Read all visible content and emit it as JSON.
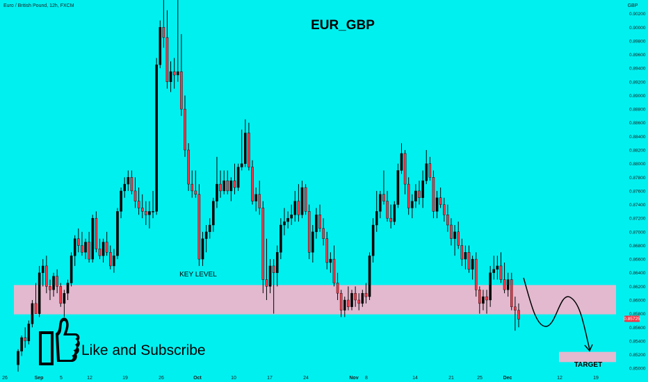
{
  "header": {
    "symbol_info": "Euro / British Pound, 12h, FXCM",
    "currency": "GBP",
    "title": "EUR_GBP"
  },
  "annotations": {
    "key_level_label": "KEY LEVEL",
    "target_label": "TARGET",
    "cta_text": "Like and Subscribe",
    "cta_icon": "thumbs-up-icon"
  },
  "price_badge": {
    "value": "0.85725",
    "color": "#f23645"
  },
  "colors": {
    "background": "#00f0f0",
    "bull": "#000000",
    "bear": "#f23645",
    "zone": "#f5b4cc",
    "axis_text": "#1e1e1e"
  },
  "chart_data": {
    "type": "candlestick",
    "title": "EUR_GBP",
    "y_axis": {
      "side": "right",
      "unit": "GBP",
      "range": [
        0.849,
        0.904
      ],
      "ticks": [
        "0.90200",
        "0.90000",
        "0.89800",
        "0.89600",
        "0.89400",
        "0.89200",
        "0.89000",
        "0.88800",
        "0.88600",
        "0.88400",
        "0.88200",
        "0.88000",
        "0.87800",
        "0.87600",
        "0.87400",
        "0.87200",
        "0.87000",
        "0.86800",
        "0.86600",
        "0.86400",
        "0.86200",
        "0.86000",
        "0.85800",
        "0.85600",
        "0.85400",
        "0.85200",
        "0.85000"
      ]
    },
    "x_axis": {
      "ticks": [
        "26",
        "Sep",
        "5",
        "12",
        "19",
        "26",
        "Oct",
        "10",
        "17",
        "24",
        "Nov",
        "8",
        "14",
        "21",
        "25",
        "Dec",
        "12",
        "19"
      ],
      "bold_ticks": [
        "Sep",
        "Oct",
        "Nov",
        "Dec"
      ]
    },
    "key_level_zone": [
      0.8579,
      0.8622
    ],
    "target_zone": [
      0.8509,
      0.8524
    ],
    "last_price": 0.85725,
    "candles": [
      {
        "o": 0.8505,
        "h": 0.8528,
        "l": 0.8495,
        "c": 0.8525
      },
      {
        "o": 0.8525,
        "h": 0.8548,
        "l": 0.8518,
        "c": 0.8545
      },
      {
        "o": 0.8545,
        "h": 0.856,
        "l": 0.853,
        "c": 0.854
      },
      {
        "o": 0.854,
        "h": 0.857,
        "l": 0.8535,
        "c": 0.8565
      },
      {
        "o": 0.8565,
        "h": 0.86,
        "l": 0.856,
        "c": 0.8595
      },
      {
        "o": 0.8595,
        "h": 0.8625,
        "l": 0.858,
        "c": 0.858
      },
      {
        "o": 0.858,
        "h": 0.865,
        "l": 0.8575,
        "c": 0.864
      },
      {
        "o": 0.864,
        "h": 0.866,
        "l": 0.862,
        "c": 0.865
      },
      {
        "o": 0.865,
        "h": 0.8665,
        "l": 0.861,
        "c": 0.862
      },
      {
        "o": 0.862,
        "h": 0.863,
        "l": 0.86,
        "c": 0.8615
      },
      {
        "o": 0.8615,
        "h": 0.864,
        "l": 0.8605,
        "c": 0.8635
      },
      {
        "o": 0.8635,
        "h": 0.8645,
        "l": 0.861,
        "c": 0.862
      },
      {
        "o": 0.862,
        "h": 0.8625,
        "l": 0.859,
        "c": 0.8595
      },
      {
        "o": 0.8595,
        "h": 0.8615,
        "l": 0.8575,
        "c": 0.861
      },
      {
        "o": 0.861,
        "h": 0.863,
        "l": 0.86,
        "c": 0.8625
      },
      {
        "o": 0.8625,
        "h": 0.867,
        "l": 0.862,
        "c": 0.8665
      },
      {
        "o": 0.8665,
        "h": 0.8695,
        "l": 0.865,
        "c": 0.869
      },
      {
        "o": 0.869,
        "h": 0.8705,
        "l": 0.867,
        "c": 0.868
      },
      {
        "o": 0.868,
        "h": 0.87,
        "l": 0.8665,
        "c": 0.867
      },
      {
        "o": 0.867,
        "h": 0.869,
        "l": 0.866,
        "c": 0.8685
      },
      {
        "o": 0.8685,
        "h": 0.87,
        "l": 0.8655,
        "c": 0.866
      },
      {
        "o": 0.866,
        "h": 0.8725,
        "l": 0.8655,
        "c": 0.872
      },
      {
        "o": 0.872,
        "h": 0.873,
        "l": 0.867,
        "c": 0.8675
      },
      {
        "o": 0.8675,
        "h": 0.869,
        "l": 0.866,
        "c": 0.8665
      },
      {
        "o": 0.8665,
        "h": 0.869,
        "l": 0.8655,
        "c": 0.8685
      },
      {
        "o": 0.8685,
        "h": 0.87,
        "l": 0.8665,
        "c": 0.867
      },
      {
        "o": 0.867,
        "h": 0.868,
        "l": 0.8645,
        "c": 0.865
      },
      {
        "o": 0.865,
        "h": 0.8675,
        "l": 0.864,
        "c": 0.8665
      },
      {
        "o": 0.8665,
        "h": 0.8735,
        "l": 0.866,
        "c": 0.873
      },
      {
        "o": 0.873,
        "h": 0.8765,
        "l": 0.872,
        "c": 0.876
      },
      {
        "o": 0.876,
        "h": 0.878,
        "l": 0.875,
        "c": 0.877
      },
      {
        "o": 0.877,
        "h": 0.879,
        "l": 0.876,
        "c": 0.878
      },
      {
        "o": 0.878,
        "h": 0.879,
        "l": 0.8755,
        "c": 0.876
      },
      {
        "o": 0.876,
        "h": 0.878,
        "l": 0.8735,
        "c": 0.8745
      },
      {
        "o": 0.8745,
        "h": 0.8765,
        "l": 0.8725,
        "c": 0.8735
      },
      {
        "o": 0.8735,
        "h": 0.8755,
        "l": 0.872,
        "c": 0.873
      },
      {
        "o": 0.873,
        "h": 0.8745,
        "l": 0.871,
        "c": 0.8725
      },
      {
        "o": 0.8725,
        "h": 0.8745,
        "l": 0.8705,
        "c": 0.873
      },
      {
        "o": 0.873,
        "h": 0.876,
        "l": 0.872,
        "c": 0.873
      },
      {
        "o": 0.873,
        "h": 0.8955,
        "l": 0.8725,
        "c": 0.8945
      },
      {
        "o": 0.8945,
        "h": 0.901,
        "l": 0.894,
        "c": 0.9
      },
      {
        "o": 0.9,
        "h": 0.904,
        "l": 0.897,
        "c": 0.8985
      },
      {
        "o": 0.8985,
        "h": 0.9025,
        "l": 0.891,
        "c": 0.892
      },
      {
        "o": 0.892,
        "h": 0.895,
        "l": 0.8905,
        "c": 0.8935
      },
      {
        "o": 0.8935,
        "h": 0.8955,
        "l": 0.891,
        "c": 0.893
      },
      {
        "o": 0.893,
        "h": 0.904,
        "l": 0.892,
        "c": 0.8935
      },
      {
        "o": 0.8935,
        "h": 0.899,
        "l": 0.887,
        "c": 0.888
      },
      {
        "o": 0.888,
        "h": 0.89,
        "l": 0.881,
        "c": 0.882
      },
      {
        "o": 0.882,
        "h": 0.883,
        "l": 0.876,
        "c": 0.877
      },
      {
        "o": 0.877,
        "h": 0.879,
        "l": 0.875,
        "c": 0.876
      },
      {
        "o": 0.876,
        "h": 0.879,
        "l": 0.875,
        "c": 0.8755
      },
      {
        "o": 0.8755,
        "h": 0.877,
        "l": 0.865,
        "c": 0.866
      },
      {
        "o": 0.866,
        "h": 0.87,
        "l": 0.865,
        "c": 0.869
      },
      {
        "o": 0.869,
        "h": 0.871,
        "l": 0.867,
        "c": 0.87
      },
      {
        "o": 0.87,
        "h": 0.872,
        "l": 0.869,
        "c": 0.871
      },
      {
        "o": 0.871,
        "h": 0.875,
        "l": 0.87,
        "c": 0.8745
      },
      {
        "o": 0.8745,
        "h": 0.881,
        "l": 0.8735,
        "c": 0.877
      },
      {
        "o": 0.877,
        "h": 0.879,
        "l": 0.875,
        "c": 0.876
      },
      {
        "o": 0.876,
        "h": 0.879,
        "l": 0.8755,
        "c": 0.8775
      },
      {
        "o": 0.8775,
        "h": 0.879,
        "l": 0.8755,
        "c": 0.876
      },
      {
        "o": 0.876,
        "h": 0.878,
        "l": 0.8745,
        "c": 0.8775
      },
      {
        "o": 0.8775,
        "h": 0.88,
        "l": 0.8755,
        "c": 0.8765
      },
      {
        "o": 0.8765,
        "h": 0.88,
        "l": 0.876,
        "c": 0.8795
      },
      {
        "o": 0.8795,
        "h": 0.885,
        "l": 0.879,
        "c": 0.88
      },
      {
        "o": 0.88,
        "h": 0.8865,
        "l": 0.8795,
        "c": 0.8845
      },
      {
        "o": 0.8845,
        "h": 0.886,
        "l": 0.879,
        "c": 0.8795
      },
      {
        "o": 0.8795,
        "h": 0.8805,
        "l": 0.874,
        "c": 0.8745
      },
      {
        "o": 0.8745,
        "h": 0.8765,
        "l": 0.873,
        "c": 0.8755
      },
      {
        "o": 0.8755,
        "h": 0.8775,
        "l": 0.8725,
        "c": 0.8735
      },
      {
        "o": 0.8735,
        "h": 0.8745,
        "l": 0.861,
        "c": 0.863
      },
      {
        "o": 0.863,
        "h": 0.869,
        "l": 0.86,
        "c": 0.862
      },
      {
        "o": 0.862,
        "h": 0.866,
        "l": 0.861,
        "c": 0.865
      },
      {
        "o": 0.865,
        "h": 0.866,
        "l": 0.858,
        "c": 0.864
      },
      {
        "o": 0.864,
        "h": 0.868,
        "l": 0.862,
        "c": 0.867
      },
      {
        "o": 0.867,
        "h": 0.872,
        "l": 0.866,
        "c": 0.871
      },
      {
        "o": 0.871,
        "h": 0.8735,
        "l": 0.8695,
        "c": 0.8715
      },
      {
        "o": 0.8715,
        "h": 0.873,
        "l": 0.8705,
        "c": 0.872
      },
      {
        "o": 0.872,
        "h": 0.874,
        "l": 0.871,
        "c": 0.8725
      },
      {
        "o": 0.8725,
        "h": 0.876,
        "l": 0.8715,
        "c": 0.8745
      },
      {
        "o": 0.8745,
        "h": 0.877,
        "l": 0.8715,
        "c": 0.8725
      },
      {
        "o": 0.8725,
        "h": 0.8775,
        "l": 0.872,
        "c": 0.8765
      },
      {
        "o": 0.8765,
        "h": 0.877,
        "l": 0.8725,
        "c": 0.873
      },
      {
        "o": 0.873,
        "h": 0.874,
        "l": 0.866,
        "c": 0.867
      },
      {
        "o": 0.867,
        "h": 0.871,
        "l": 0.8655,
        "c": 0.87
      },
      {
        "o": 0.87,
        "h": 0.8735,
        "l": 0.869,
        "c": 0.8725
      },
      {
        "o": 0.8725,
        "h": 0.874,
        "l": 0.87,
        "c": 0.8705
      },
      {
        "o": 0.8705,
        "h": 0.872,
        "l": 0.868,
        "c": 0.869
      },
      {
        "o": 0.869,
        "h": 0.87,
        "l": 0.8645,
        "c": 0.8655
      },
      {
        "o": 0.8655,
        "h": 0.867,
        "l": 0.864,
        "c": 0.866
      },
      {
        "o": 0.866,
        "h": 0.868,
        "l": 0.862,
        "c": 0.8625
      },
      {
        "o": 0.8625,
        "h": 0.864,
        "l": 0.86,
        "c": 0.861
      },
      {
        "o": 0.861,
        "h": 0.8615,
        "l": 0.8575,
        "c": 0.8585
      },
      {
        "o": 0.8585,
        "h": 0.8605,
        "l": 0.8575,
        "c": 0.86
      },
      {
        "o": 0.86,
        "h": 0.862,
        "l": 0.8585,
        "c": 0.859
      },
      {
        "o": 0.859,
        "h": 0.8615,
        "l": 0.8585,
        "c": 0.861
      },
      {
        "o": 0.861,
        "h": 0.862,
        "l": 0.859,
        "c": 0.86
      },
      {
        "o": 0.86,
        "h": 0.861,
        "l": 0.8585,
        "c": 0.8595
      },
      {
        "o": 0.8595,
        "h": 0.8615,
        "l": 0.859,
        "c": 0.861
      },
      {
        "o": 0.861,
        "h": 0.8625,
        "l": 0.8595,
        "c": 0.8605
      },
      {
        "o": 0.8605,
        "h": 0.867,
        "l": 0.86,
        "c": 0.8665
      },
      {
        "o": 0.8665,
        "h": 0.872,
        "l": 0.8655,
        "c": 0.871
      },
      {
        "o": 0.871,
        "h": 0.876,
        "l": 0.87,
        "c": 0.873
      },
      {
        "o": 0.873,
        "h": 0.876,
        "l": 0.872,
        "c": 0.8755
      },
      {
        "o": 0.8755,
        "h": 0.879,
        "l": 0.874,
        "c": 0.8745
      },
      {
        "o": 0.8745,
        "h": 0.876,
        "l": 0.8715,
        "c": 0.872
      },
      {
        "o": 0.872,
        "h": 0.874,
        "l": 0.8705,
        "c": 0.8715
      },
      {
        "o": 0.8715,
        "h": 0.8745,
        "l": 0.871,
        "c": 0.874
      },
      {
        "o": 0.874,
        "h": 0.88,
        "l": 0.8735,
        "c": 0.879
      },
      {
        "o": 0.879,
        "h": 0.883,
        "l": 0.8785,
        "c": 0.8815
      },
      {
        "o": 0.8815,
        "h": 0.882,
        "l": 0.8755,
        "c": 0.877
      },
      {
        "o": 0.877,
        "h": 0.878,
        "l": 0.8725,
        "c": 0.8735
      },
      {
        "o": 0.8735,
        "h": 0.8755,
        "l": 0.872,
        "c": 0.8745
      },
      {
        "o": 0.8745,
        "h": 0.877,
        "l": 0.8735,
        "c": 0.876
      },
      {
        "o": 0.876,
        "h": 0.8775,
        "l": 0.874,
        "c": 0.875
      },
      {
        "o": 0.875,
        "h": 0.879,
        "l": 0.8735,
        "c": 0.8775
      },
      {
        "o": 0.8775,
        "h": 0.882,
        "l": 0.877,
        "c": 0.88
      },
      {
        "o": 0.88,
        "h": 0.881,
        "l": 0.8775,
        "c": 0.878
      },
      {
        "o": 0.878,
        "h": 0.879,
        "l": 0.872,
        "c": 0.873
      },
      {
        "o": 0.873,
        "h": 0.876,
        "l": 0.872,
        "c": 0.875
      },
      {
        "o": 0.875,
        "h": 0.8765,
        "l": 0.8735,
        "c": 0.874
      },
      {
        "o": 0.874,
        "h": 0.875,
        "l": 0.8715,
        "c": 0.8725
      },
      {
        "o": 0.8725,
        "h": 0.874,
        "l": 0.87,
        "c": 0.871
      },
      {
        "o": 0.871,
        "h": 0.872,
        "l": 0.868,
        "c": 0.869
      },
      {
        "o": 0.869,
        "h": 0.871,
        "l": 0.8665,
        "c": 0.87
      },
      {
        "o": 0.87,
        "h": 0.8715,
        "l": 0.8675,
        "c": 0.868
      },
      {
        "o": 0.868,
        "h": 0.869,
        "l": 0.865,
        "c": 0.866
      },
      {
        "o": 0.866,
        "h": 0.868,
        "l": 0.8645,
        "c": 0.867
      },
      {
        "o": 0.867,
        "h": 0.868,
        "l": 0.864,
        "c": 0.8645
      },
      {
        "o": 0.8645,
        "h": 0.8665,
        "l": 0.863,
        "c": 0.866
      },
      {
        "o": 0.866,
        "h": 0.867,
        "l": 0.8605,
        "c": 0.8615
      },
      {
        "o": 0.8615,
        "h": 0.862,
        "l": 0.858,
        "c": 0.8595
      },
      {
        "o": 0.8595,
        "h": 0.8615,
        "l": 0.8585,
        "c": 0.8605
      },
      {
        "o": 0.8605,
        "h": 0.8615,
        "l": 0.858,
        "c": 0.86
      },
      {
        "o": 0.86,
        "h": 0.865,
        "l": 0.859,
        "c": 0.864
      },
      {
        "o": 0.864,
        "h": 0.8665,
        "l": 0.863,
        "c": 0.8645
      },
      {
        "o": 0.8645,
        "h": 0.8665,
        "l": 0.863,
        "c": 0.865
      },
      {
        "o": 0.865,
        "h": 0.867,
        "l": 0.8625,
        "c": 0.863
      },
      {
        "o": 0.863,
        "h": 0.8655,
        "l": 0.861,
        "c": 0.8615
      },
      {
        "o": 0.8615,
        "h": 0.864,
        "l": 0.8605,
        "c": 0.863
      },
      {
        "o": 0.863,
        "h": 0.864,
        "l": 0.8585,
        "c": 0.859
      },
      {
        "o": 0.859,
        "h": 0.8605,
        "l": 0.8555,
        "c": 0.8585
      },
      {
        "o": 0.8585,
        "h": 0.8595,
        "l": 0.856,
        "c": 0.8572
      }
    ]
  }
}
